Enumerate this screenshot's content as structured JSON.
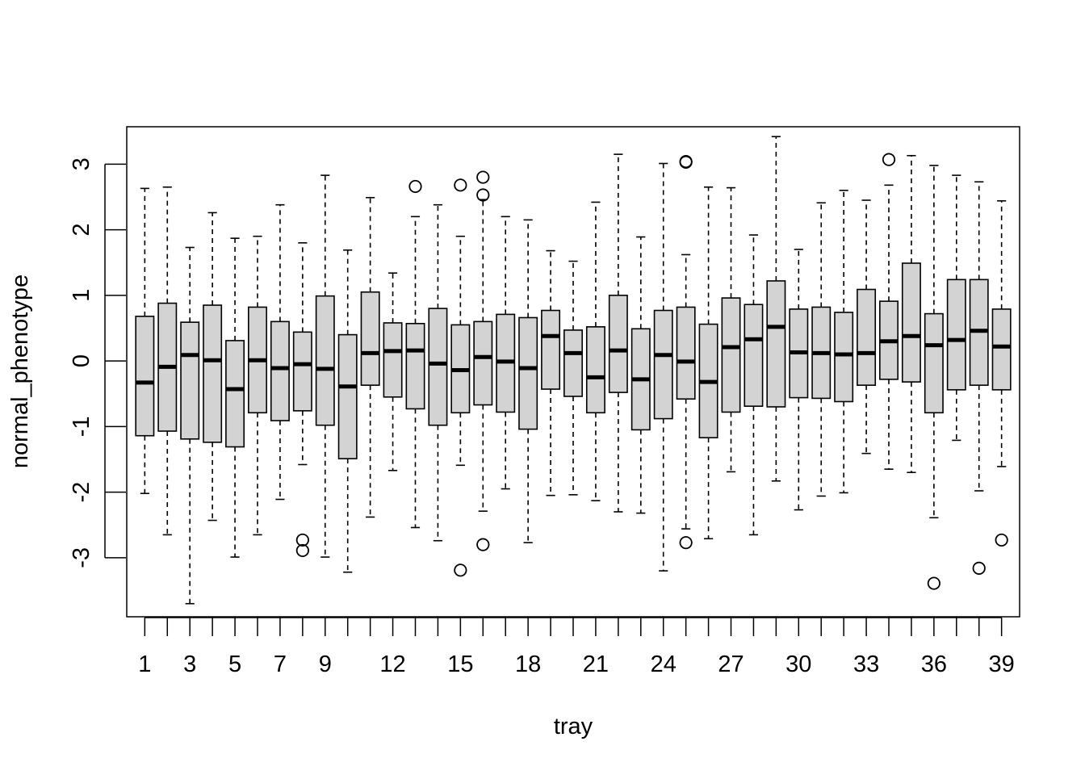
{
  "chart_data": {
    "type": "boxplot",
    "xlabel": "tray",
    "ylabel": "normal_phenotype",
    "ylim": [
      -3.9,
      3.57
    ],
    "xlim": [
      0.2,
      39.8
    ],
    "y_ticks": [
      -3,
      -2,
      -1,
      0,
      1,
      2,
      3
    ],
    "x_tick_positions": [
      1,
      2,
      3,
      4,
      5,
      6,
      7,
      8,
      9,
      10,
      11,
      12,
      13,
      14,
      15,
      16,
      17,
      18,
      19,
      20,
      21,
      22,
      23,
      24,
      25,
      26,
      27,
      28,
      29,
      30,
      31,
      32,
      33,
      34,
      35,
      36,
      37,
      38,
      39
    ],
    "x_tick_labels": [
      "1",
      "3",
      "5",
      "7",
      "9",
      "12",
      "15",
      "18",
      "21",
      "24",
      "27",
      "30",
      "33",
      "36",
      "39"
    ],
    "x_label_positions": [
      1,
      3,
      5,
      7,
      9,
      12,
      15,
      18,
      21,
      24,
      27,
      30,
      33,
      36,
      39
    ],
    "box_fill": "#d3d3d3",
    "grid": false,
    "boxes": [
      {
        "tray": 1,
        "whisker_low": -2.02,
        "q1": -1.14,
        "median": -0.33,
        "q3": 0.68,
        "whisker_high": 2.63,
        "outliers": []
      },
      {
        "tray": 2,
        "whisker_low": -2.65,
        "q1": -1.07,
        "median": -0.09,
        "q3": 0.88,
        "whisker_high": 2.65,
        "outliers": []
      },
      {
        "tray": 3,
        "whisker_low": -3.7,
        "q1": -1.19,
        "median": 0.09,
        "q3": 0.59,
        "whisker_high": 1.73,
        "outliers": []
      },
      {
        "tray": 4,
        "whisker_low": -2.43,
        "q1": -1.24,
        "median": 0.01,
        "q3": 0.85,
        "whisker_high": 2.26,
        "outliers": []
      },
      {
        "tray": 5,
        "whisker_low": -2.99,
        "q1": -1.31,
        "median": -0.43,
        "q3": 0.31,
        "whisker_high": 1.87,
        "outliers": []
      },
      {
        "tray": 6,
        "whisker_low": -2.65,
        "q1": -0.79,
        "median": 0.01,
        "q3": 0.82,
        "whisker_high": 1.9,
        "outliers": []
      },
      {
        "tray": 7,
        "whisker_low": -2.11,
        "q1": -0.91,
        "median": -0.11,
        "q3": 0.6,
        "whisker_high": 2.38,
        "outliers": []
      },
      {
        "tray": 8,
        "whisker_low": -1.58,
        "q1": -0.76,
        "median": -0.05,
        "q3": 0.44,
        "whisker_high": 1.8,
        "outliers": [
          -2.73,
          -2.89
        ]
      },
      {
        "tray": 9,
        "whisker_low": -2.99,
        "q1": -0.98,
        "median": -0.12,
        "q3": 0.99,
        "whisker_high": 2.83,
        "outliers": []
      },
      {
        "tray": 10,
        "whisker_low": -3.22,
        "q1": -1.49,
        "median": -0.39,
        "q3": 0.4,
        "whisker_high": 1.69,
        "outliers": []
      },
      {
        "tray": 11,
        "whisker_low": -2.38,
        "q1": -0.37,
        "median": 0.12,
        "q3": 1.05,
        "whisker_high": 2.49,
        "outliers": []
      },
      {
        "tray": 12,
        "whisker_low": -1.67,
        "q1": -0.55,
        "median": 0.15,
        "q3": 0.58,
        "whisker_high": 1.34,
        "outliers": []
      },
      {
        "tray": 13,
        "whisker_low": -2.54,
        "q1": -0.73,
        "median": 0.16,
        "q3": 0.57,
        "whisker_high": 2.2,
        "outliers": [
          2.66
        ]
      },
      {
        "tray": 14,
        "whisker_low": -2.74,
        "q1": -0.98,
        "median": -0.04,
        "q3": 0.8,
        "whisker_high": 2.38,
        "outliers": []
      },
      {
        "tray": 15,
        "whisker_low": -1.59,
        "q1": -0.79,
        "median": -0.14,
        "q3": 0.55,
        "whisker_high": 1.9,
        "outliers": [
          2.68,
          -3.19
        ]
      },
      {
        "tray": 16,
        "whisker_low": -2.29,
        "q1": -0.67,
        "median": 0.06,
        "q3": 0.6,
        "whisker_high": 2.46,
        "outliers": [
          2.8,
          2.53,
          -2.8
        ]
      },
      {
        "tray": 17,
        "whisker_low": -1.95,
        "q1": -0.78,
        "median": -0.01,
        "q3": 0.71,
        "whisker_high": 2.2,
        "outliers": []
      },
      {
        "tray": 18,
        "whisker_low": -2.77,
        "q1": -1.04,
        "median": -0.11,
        "q3": 0.66,
        "whisker_high": 2.15,
        "outliers": []
      },
      {
        "tray": 19,
        "whisker_low": -2.05,
        "q1": -0.43,
        "median": 0.38,
        "q3": 0.77,
        "whisker_high": 1.68,
        "outliers": []
      },
      {
        "tray": 20,
        "whisker_low": -2.04,
        "q1": -0.54,
        "median": 0.12,
        "q3": 0.47,
        "whisker_high": 1.52,
        "outliers": []
      },
      {
        "tray": 21,
        "whisker_low": -2.13,
        "q1": -0.79,
        "median": -0.25,
        "q3": 0.52,
        "whisker_high": 2.42,
        "outliers": []
      },
      {
        "tray": 22,
        "whisker_low": -2.3,
        "q1": -0.48,
        "median": 0.16,
        "q3": 1.0,
        "whisker_high": 3.15,
        "outliers": []
      },
      {
        "tray": 23,
        "whisker_low": -2.32,
        "q1": -1.05,
        "median": -0.28,
        "q3": 0.49,
        "whisker_high": 1.89,
        "outliers": []
      },
      {
        "tray": 24,
        "whisker_low": -3.2,
        "q1": -0.88,
        "median": 0.09,
        "q3": 0.77,
        "whisker_high": 3.01,
        "outliers": []
      },
      {
        "tray": 25,
        "whisker_low": -2.56,
        "q1": -0.58,
        "median": -0.01,
        "q3": 0.82,
        "whisker_high": 1.62,
        "outliers": [
          3.04,
          3.03,
          -2.77
        ]
      },
      {
        "tray": 26,
        "whisker_low": -2.71,
        "q1": -1.17,
        "median": -0.32,
        "q3": 0.56,
        "whisker_high": 2.65,
        "outliers": []
      },
      {
        "tray": 27,
        "whisker_low": -1.69,
        "q1": -0.78,
        "median": 0.21,
        "q3": 0.96,
        "whisker_high": 2.64,
        "outliers": []
      },
      {
        "tray": 28,
        "whisker_low": -2.65,
        "q1": -0.69,
        "median": 0.33,
        "q3": 0.86,
        "whisker_high": 1.92,
        "outliers": []
      },
      {
        "tray": 29,
        "whisker_low": -1.83,
        "q1": -0.7,
        "median": 0.52,
        "q3": 1.22,
        "whisker_high": 3.42,
        "outliers": []
      },
      {
        "tray": 30,
        "whisker_low": -2.27,
        "q1": -0.56,
        "median": 0.13,
        "q3": 0.79,
        "whisker_high": 1.7,
        "outliers": []
      },
      {
        "tray": 31,
        "whisker_low": -2.06,
        "q1": -0.57,
        "median": 0.12,
        "q3": 0.82,
        "whisker_high": 2.41,
        "outliers": []
      },
      {
        "tray": 32,
        "whisker_low": -2.01,
        "q1": -0.62,
        "median": 0.1,
        "q3": 0.74,
        "whisker_high": 2.6,
        "outliers": []
      },
      {
        "tray": 33,
        "whisker_low": -1.41,
        "q1": -0.37,
        "median": 0.12,
        "q3": 1.09,
        "whisker_high": 2.45,
        "outliers": []
      },
      {
        "tray": 34,
        "whisker_low": -1.65,
        "q1": -0.28,
        "median": 0.3,
        "q3": 0.91,
        "whisker_high": 2.68,
        "outliers": [
          3.07
        ]
      },
      {
        "tray": 35,
        "whisker_low": -1.7,
        "q1": -0.32,
        "median": 0.38,
        "q3": 1.49,
        "whisker_high": 3.13,
        "outliers": []
      },
      {
        "tray": 36,
        "whisker_low": -2.39,
        "q1": -0.79,
        "median": 0.24,
        "q3": 0.72,
        "whisker_high": 2.98,
        "outliers": [
          -3.39
        ]
      },
      {
        "tray": 37,
        "whisker_low": -1.21,
        "q1": -0.44,
        "median": 0.32,
        "q3": 1.24,
        "whisker_high": 2.83,
        "outliers": []
      },
      {
        "tray": 38,
        "whisker_low": -1.98,
        "q1": -0.37,
        "median": 0.46,
        "q3": 1.24,
        "whisker_high": 2.73,
        "outliers": [
          -3.16
        ]
      },
      {
        "tray": 39,
        "whisker_low": -1.61,
        "q1": -0.44,
        "median": 0.22,
        "q3": 0.79,
        "whisker_high": 2.44,
        "outliers": [
          -2.73
        ]
      }
    ]
  }
}
